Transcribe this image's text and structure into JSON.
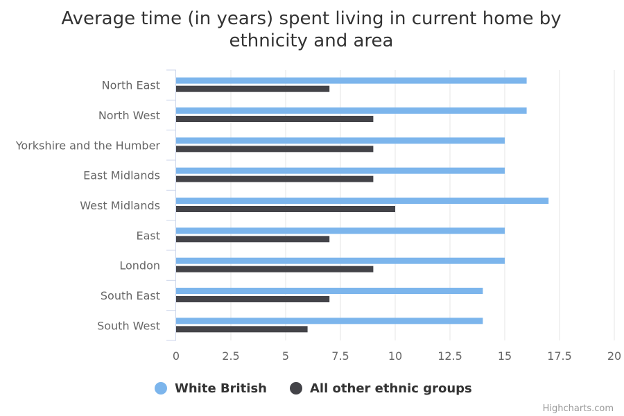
{
  "chart_data": {
    "type": "bar",
    "orientation": "horizontal",
    "title_lines": [
      "Average time (in years) spent living in current home by",
      "ethnicity and area"
    ],
    "categories": [
      "North East",
      "North West",
      "Yorkshire and the Humber",
      "East Midlands",
      "West Midlands",
      "East",
      "London",
      "South East",
      "South West"
    ],
    "series": [
      {
        "name": "White British",
        "color": "#7cb5ec",
        "values": [
          16,
          16,
          15,
          15,
          17,
          15,
          15,
          14,
          14
        ]
      },
      {
        "name": "All other ethnic groups",
        "color": "#434348",
        "values": [
          7,
          9,
          9,
          9,
          10,
          7,
          9,
          7,
          6
        ]
      }
    ],
    "xlim": [
      0,
      20
    ],
    "ticks": [
      "0",
      "2.5",
      "5",
      "7.5",
      "10",
      "12.5",
      "15",
      "17.5",
      "20"
    ],
    "grid": true,
    "legend_position": "bottom-center",
    "credits": "Highcharts.com"
  }
}
